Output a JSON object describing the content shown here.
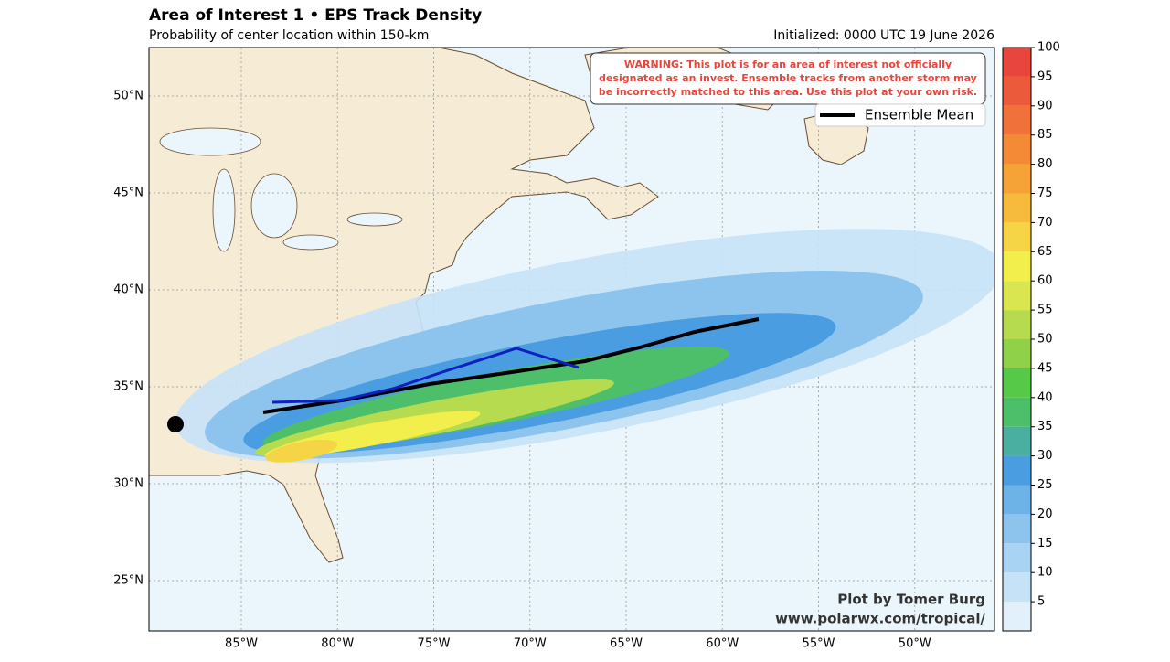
{
  "header": {
    "title": "Area of Interest 1 • EPS Track Density",
    "subtitle": "Probability of center location within 150-km",
    "initialized": "Initialized: 0000 UTC 19 June 2026"
  },
  "map": {
    "lon_ticks": [
      {
        "value": -85,
        "label": "85°W"
      },
      {
        "value": -80,
        "label": "80°W"
      },
      {
        "value": -75,
        "label": "75°W"
      },
      {
        "value": -70,
        "label": "70°W"
      },
      {
        "value": -65,
        "label": "65°W"
      },
      {
        "value": -60,
        "label": "60°W"
      },
      {
        "value": -55,
        "label": "55°W"
      },
      {
        "value": -50,
        "label": "50°W"
      }
    ],
    "lat_ticks": [
      {
        "value": 50,
        "label": "50°N"
      },
      {
        "value": 45,
        "label": "45°N"
      },
      {
        "value": 40,
        "label": "40°N"
      },
      {
        "value": 35,
        "label": "35°N"
      },
      {
        "value": 30,
        "label": "30°N"
      },
      {
        "value": 25,
        "label": "25°N"
      }
    ],
    "warning": [
      "WARNING: This plot is for an area of interest not officially",
      "designated as an invest. Ensemble tracks from another storm may",
      "be incorrectly matched to this area. Use this plot at your own risk."
    ],
    "legend": "Ensemble Mean",
    "credit": [
      "Plot by Tomer Burg",
      "www.polarwx.com/tropical/"
    ]
  },
  "colorbar": {
    "clim": [
      0,
      100
    ],
    "ticks": [
      5,
      10,
      15,
      20,
      25,
      30,
      35,
      40,
      45,
      50,
      55,
      60,
      65,
      70,
      75,
      80,
      85,
      90,
      95,
      100
    ],
    "colors": [
      "#e1f0fb",
      "#c6e2f7",
      "#a9d3f2",
      "#8cc4ee",
      "#6eb3e8",
      "#4a9de0",
      "#4aaea0",
      "#4dbf6b",
      "#56c948",
      "#8fd24a",
      "#b7db4f",
      "#d9e650",
      "#f2ef4c",
      "#f5d446",
      "#f6bb3d",
      "#f5a336",
      "#f38a35",
      "#f07139",
      "#ec5a3c",
      "#e8453c"
    ]
  }
}
